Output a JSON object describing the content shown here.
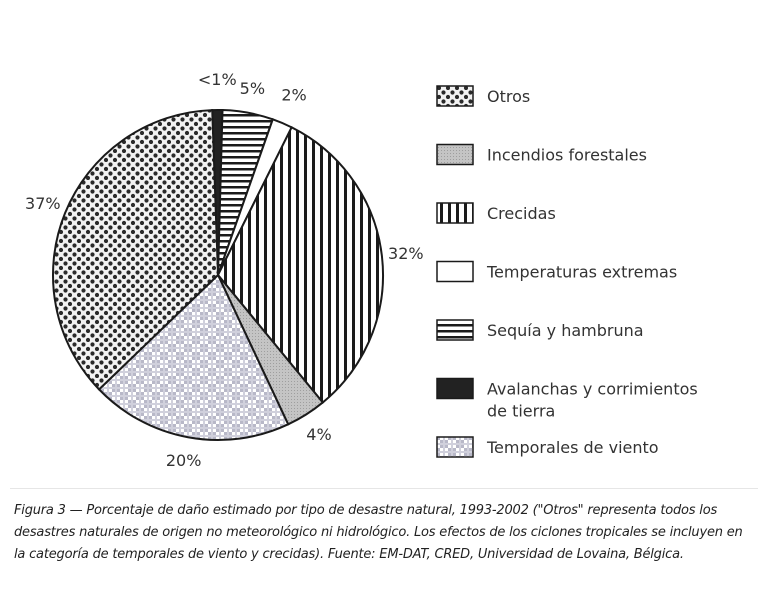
{
  "chart_data": {
    "type": "pie",
    "slices": [
      {
        "label": "Avalanchas y corrimientos de tierra",
        "value": 1,
        "value_label": "<1%",
        "pattern": "solid-dark"
      },
      {
        "label": "Sequía y hambruna",
        "value": 5,
        "value_label": "5%",
        "pattern": "horizontal-stripes"
      },
      {
        "label": "Temperaturas extremas",
        "value": 2,
        "value_label": "2%",
        "pattern": "blank"
      },
      {
        "label": "Crecidas",
        "value": 32,
        "value_label": "32%",
        "pattern": "vertical-stripes"
      },
      {
        "label": "Incendios forestales",
        "value": 4,
        "value_label": "4%",
        "pattern": "gray"
      },
      {
        "label": "Temporales de viento",
        "value": 20,
        "value_label": "20%",
        "pattern": "checker"
      },
      {
        "label": "Otros",
        "value": 37,
        "value_label": "37%",
        "pattern": "dots"
      }
    ],
    "legend": {
      "placement": "right",
      "entries": [
        {
          "label": "Otros",
          "pattern": "dots"
        },
        {
          "label": "Incendios forestales",
          "pattern": "gray"
        },
        {
          "label": "Crecidas",
          "pattern": "vertical-stripes"
        },
        {
          "label": "Temperaturas extremas",
          "pattern": "blank"
        },
        {
          "label": "Sequía y hambruna",
          "pattern": "horizontal-stripes"
        },
        {
          "label": "Avalanchas y corrimientos de tierra",
          "pattern": "solid-dark"
        },
        {
          "label": "Temporales de viento",
          "pattern": "checker"
        }
      ]
    },
    "title": "",
    "caption": "Figura 3 — Porcentaje de daño estimado por tipo de desastre natural, 1993-2002 (\"Otros\" representa todos los desastres naturales de origen no meteorológico ni hidrológico. Los efectos de los ciclones tropicales se incluyen en la categoría de temporales de viento y crecidas). Fuente: EM-DAT, CRED, Universidad de Lovaina, Bélgica."
  },
  "colors": {
    "outline": "#1a1a1a",
    "dots_bg": "#f2f2f2",
    "dots_fg": "#2a2a2a",
    "gray": "#bdbdbd",
    "checker": "#b8b8c8",
    "solid_dark": "#222222"
  }
}
